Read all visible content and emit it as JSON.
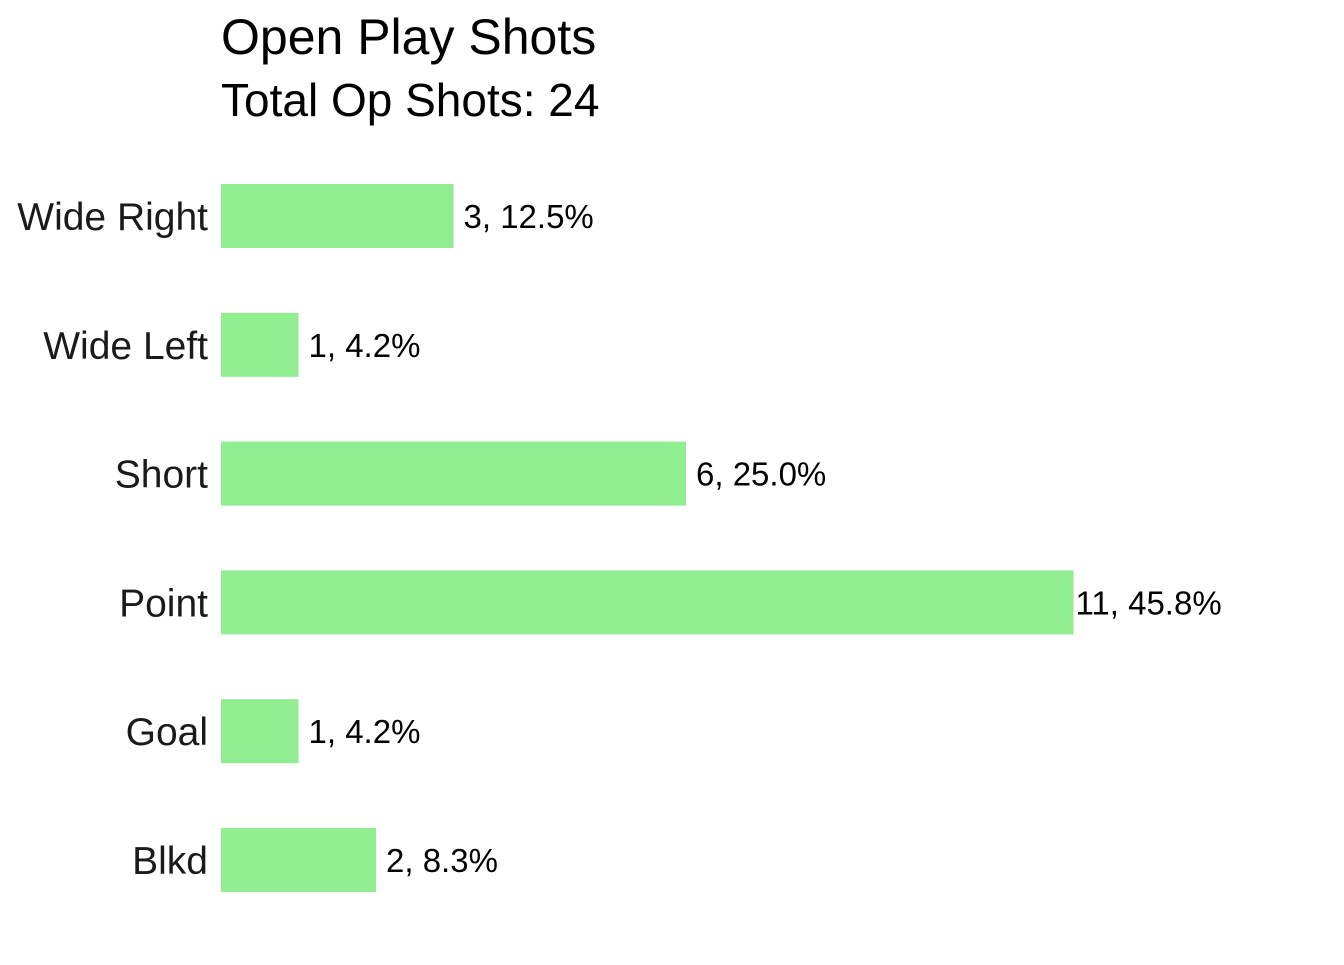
{
  "chart_data": {
    "type": "bar",
    "orientation": "horizontal",
    "title": "Open Play Shots",
    "subtitle": "Total Op Shots: 24",
    "categories": [
      "Wide Right",
      "Wide Left",
      "Short",
      "Point",
      "Goal",
      "Blkd"
    ],
    "values": [
      3,
      1,
      6,
      11,
      1,
      2
    ],
    "data_labels": [
      "3, 12.5%",
      "1, 4.2%",
      "6, 25.0%",
      "11, 45.8%",
      "1, 4.2%",
      "2, 8.3%"
    ],
    "xlabel": "",
    "ylabel": "",
    "xlim": [
      0,
      11
    ],
    "grid": false,
    "legend": "none",
    "bar_color": "#90EE90"
  }
}
